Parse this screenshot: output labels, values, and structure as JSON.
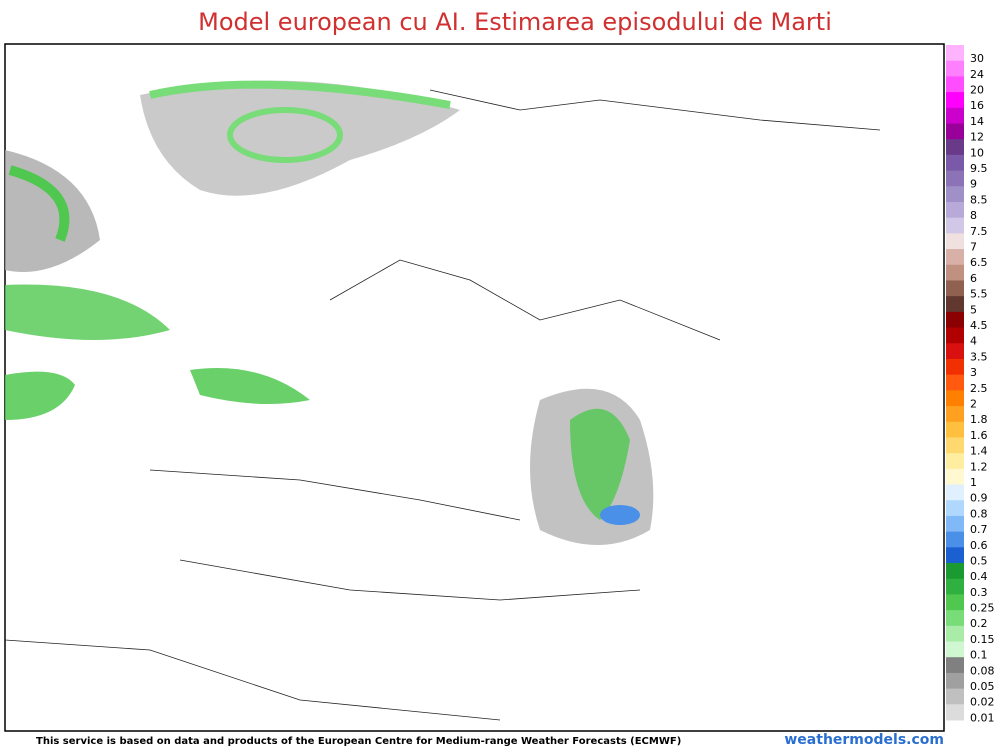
{
  "title": "Model european cu AI. Estimarea episodului de Marti",
  "legend": [
    {
      "label": "30",
      "color": "#ffb3ff"
    },
    {
      "label": "24",
      "color": "#ff80ff"
    },
    {
      "label": "20",
      "color": "#ff4dff"
    },
    {
      "label": "16",
      "color": "#ff00ff"
    },
    {
      "label": "14",
      "color": "#cc00cc"
    },
    {
      "label": "12",
      "color": "#990099"
    },
    {
      "label": "10",
      "color": "#6a3a8a"
    },
    {
      "label": "9.5",
      "color": "#7a5aa8"
    },
    {
      "label": "9",
      "color": "#8c73b8"
    },
    {
      "label": "8.5",
      "color": "#a090c8"
    },
    {
      "label": "8",
      "color": "#b8aad8"
    },
    {
      "label": "7.5",
      "color": "#d0c8e6"
    },
    {
      "label": "7",
      "color": "#f0e0e0"
    },
    {
      "label": "6.5",
      "color": "#d8b0a8"
    },
    {
      "label": "6",
      "color": "#c09080"
    },
    {
      "label": "5.5",
      "color": "#906050"
    },
    {
      "label": "5",
      "color": "#603830"
    },
    {
      "label": "4.5",
      "color": "#8b0000"
    },
    {
      "label": "4",
      "color": "#b00000"
    },
    {
      "label": "3.5",
      "color": "#d81010"
    },
    {
      "label": "3",
      "color": "#f03000"
    },
    {
      "label": "2.5",
      "color": "#ff5a10"
    },
    {
      "label": "2",
      "color": "#ff8000"
    },
    {
      "label": "1.8",
      "color": "#ffa020"
    },
    {
      "label": "1.6",
      "color": "#ffc040"
    },
    {
      "label": "1.4",
      "color": "#ffd870"
    },
    {
      "label": "1.2",
      "color": "#ffeea0"
    },
    {
      "label": "1",
      "color": "#fff8d0"
    },
    {
      "label": "0.9",
      "color": "#e0f0ff"
    },
    {
      "label": "0.8",
      "color": "#b0d8ff"
    },
    {
      "label": "0.7",
      "color": "#80b8f8"
    },
    {
      "label": "0.6",
      "color": "#4a90e8"
    },
    {
      "label": "0.5",
      "color": "#1a60d0"
    },
    {
      "label": "0.4",
      "color": "#1a9a30"
    },
    {
      "label": "0.3",
      "color": "#30b040"
    },
    {
      "label": "0.25",
      "color": "#50c850"
    },
    {
      "label": "0.2",
      "color": "#78dc78"
    },
    {
      "label": "0.15",
      "color": "#a8eca8"
    },
    {
      "label": "0.1",
      "color": "#d0f8d0"
    },
    {
      "label": "0.08",
      "color": "#808080"
    },
    {
      "label": "0.05",
      "color": "#a0a0a0"
    },
    {
      "label": "0.02",
      "color": "#c0c0c0"
    },
    {
      "label": "0.01",
      "color": "#dcdcdc"
    }
  ],
  "footer": "This service is based on data and products of the European Centre for Medium-range Weather Forecasts (ECMWF)",
  "site": "weathermodels.com"
}
